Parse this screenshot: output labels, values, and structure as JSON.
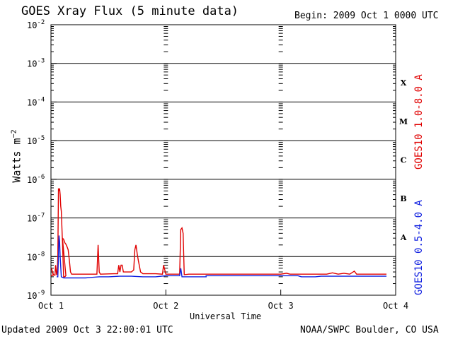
{
  "header": {
    "title": "GOES Xray Flux (5 minute data)",
    "begin": "Begin:  2009 Oct 1 0000 UTC"
  },
  "footer": {
    "updated": "Updated 2009 Oct  3 22:00:01 UTC",
    "credit": "NOAA/SWPC Boulder, CO USA"
  },
  "chart_data": {
    "type": "line",
    "title": "GOES Xray Flux (5 minute data)",
    "xlabel": "Universal Time",
    "ylabel": "Watts m⁻²",
    "yscale": "log",
    "ylim": [
      1e-09,
      0.01
    ],
    "xlim_days": [
      0,
      3
    ],
    "x_tick_labels": [
      "Oct 1",
      "Oct 2",
      "Oct 3",
      "Oct 4"
    ],
    "y_tick_labels": [
      {
        "exp": -9
      },
      {
        "exp": -8
      },
      {
        "exp": -7
      },
      {
        "exp": -6
      },
      {
        "exp": -5
      },
      {
        "exp": -4
      },
      {
        "exp": -3
      },
      {
        "exp": -2
      }
    ],
    "flare_classes": [
      "A",
      "B",
      "C",
      "M",
      "X"
    ],
    "grid": "horizontal at each decade",
    "series": [
      {
        "name": "GOES10 1.0-8.0 A",
        "color": "#e00000",
        "points": [
          [
            0.0,
            3.2e-09
          ],
          [
            0.02,
            3.3e-09
          ],
          [
            0.005,
            5e-09
          ],
          [
            0.012,
            4e-09
          ],
          [
            0.025,
            3.3e-09
          ],
          [
            0.035,
            3.3e-09
          ],
          [
            0.04,
            6e-09
          ],
          [
            0.05,
            3.3e-09
          ],
          [
            0.055,
            4e-09
          ],
          [
            0.06,
            1e-08
          ],
          [
            0.065,
            5.8e-07
          ],
          [
            0.07,
            5e-07
          ],
          [
            0.075,
            5.8e-07
          ],
          [
            0.08,
            4e-07
          ],
          [
            0.085,
            2e-07
          ],
          [
            0.09,
            1.5e-07
          ],
          [
            0.1,
            2.5e-08
          ],
          [
            0.11,
            3e-09
          ],
          [
            0.12,
            3e-09
          ],
          [
            0.13,
            3.2e-09
          ],
          [
            0.1,
            3e-08
          ],
          [
            0.11,
            2.8e-08
          ],
          [
            0.12,
            2.3e-08
          ],
          [
            0.13,
            2.1e-08
          ],
          [
            0.14,
            1.8e-08
          ],
          [
            0.15,
            1.5e-08
          ],
          [
            0.16,
            8e-09
          ],
          [
            0.17,
            4e-09
          ],
          [
            0.18,
            3.5e-09
          ],
          [
            0.2,
            3.5e-09
          ],
          [
            0.35,
            3.5e-09
          ],
          [
            0.4,
            3.5e-09
          ],
          [
            0.41,
            2e-08
          ],
          [
            0.42,
            4e-09
          ],
          [
            0.43,
            3.5e-09
          ],
          [
            0.55,
            3.6e-09
          ],
          [
            0.58,
            3.6e-09
          ],
          [
            0.59,
            6e-09
          ],
          [
            0.6,
            4e-09
          ],
          [
            0.61,
            6e-09
          ],
          [
            0.62,
            6e-09
          ],
          [
            0.63,
            4e-09
          ],
          [
            0.7,
            4e-09
          ],
          [
            0.72,
            4.5e-09
          ],
          [
            0.73,
            1.5e-08
          ],
          [
            0.74,
            2e-08
          ],
          [
            0.75,
            1.2e-08
          ],
          [
            0.76,
            8e-09
          ],
          [
            0.78,
            4e-09
          ],
          [
            0.8,
            3.6e-09
          ],
          [
            0.9,
            3.6e-09
          ],
          [
            0.91,
            3.6e-09
          ],
          [
            0.97,
            3.5e-09
          ],
          [
            0.98,
            6e-09
          ],
          [
            1.0,
            3.5e-09
          ],
          [
            1.03,
            3.5e-09
          ],
          [
            1.1,
            3.5e-09
          ],
          [
            1.12,
            3.5e-09
          ],
          [
            1.13,
            5e-08
          ],
          [
            1.14,
            5.5e-08
          ],
          [
            1.15,
            4e-08
          ],
          [
            1.16,
            3.4e-09
          ],
          [
            1.2,
            3.5e-09
          ],
          [
            1.6,
            3.5e-09
          ],
          [
            2.0,
            3.5e-09
          ],
          [
            2.05,
            3.7e-09
          ],
          [
            2.08,
            3.5e-09
          ],
          [
            2.15,
            3.5e-09
          ],
          [
            2.18,
            3.5e-09
          ],
          [
            2.4,
            3.5e-09
          ],
          [
            2.45,
            3.8e-09
          ],
          [
            2.5,
            3.5e-09
          ],
          [
            2.55,
            3.7e-09
          ],
          [
            2.6,
            3.5e-09
          ],
          [
            2.64,
            4.2e-09
          ],
          [
            2.66,
            3.5e-09
          ],
          [
            2.9,
            3.5e-09
          ],
          [
            2.92,
            3.5e-09
          ]
        ]
      },
      {
        "name": "GOES10 0.5-4.0 A",
        "color": "#1020e0",
        "points": [
          [
            0.05,
            3e-09
          ],
          [
            0.06,
            3e-09
          ],
          [
            0.065,
            1e-08
          ],
          [
            0.07,
            3.5e-08
          ],
          [
            0.075,
            2.5e-08
          ],
          [
            0.08,
            1e-08
          ],
          [
            0.09,
            3e-09
          ],
          [
            0.11,
            2.8e-09
          ],
          [
            0.3,
            2.8e-09
          ],
          [
            0.42,
            3e-09
          ],
          [
            0.5,
            3e-09
          ],
          [
            0.6,
            3.1e-09
          ],
          [
            0.7,
            3.1e-09
          ],
          [
            0.8,
            3e-09
          ],
          [
            0.91,
            3e-09
          ],
          [
            1.0,
            3.2e-09
          ],
          [
            1.12,
            3.2e-09
          ],
          [
            1.13,
            5e-09
          ],
          [
            1.14,
            3e-09
          ],
          [
            1.2,
            3e-09
          ],
          [
            1.35,
            3e-09
          ],
          [
            1.35,
            3.2e-09
          ],
          [
            1.6,
            3.2e-09
          ],
          [
            2.0,
            3.2e-09
          ],
          [
            2.15,
            3.2e-09
          ],
          [
            2.18,
            3e-09
          ],
          [
            2.3,
            3e-09
          ],
          [
            2.35,
            3.1e-09
          ],
          [
            2.5,
            3.1e-09
          ],
          [
            2.6,
            3.1e-09
          ],
          [
            2.9,
            3.1e-09
          ],
          [
            2.92,
            3.1e-09
          ]
        ]
      }
    ]
  }
}
